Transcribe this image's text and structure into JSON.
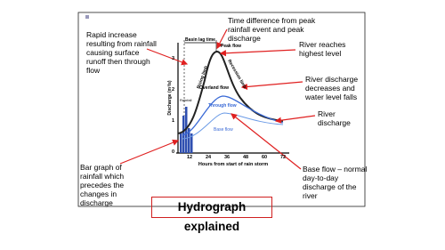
{
  "title": "Hydrograph explained",
  "annotations": {
    "rapid_increase": "Rapid increase resulting from rainfall causing surface runoff then through flow",
    "time_difference": "Time difference from peak rainfall event and peak discharge",
    "highest_level": "River reaches highest level",
    "decreases": "River discharge decreases and water level falls",
    "river_discharge": "River discharge",
    "bar_graph": "Bar graph of rainfall which precedes the changes in discharge",
    "base_flow": "Base flow – normal day-to-day discharge of the river"
  },
  "graph": {
    "y_axis_label": "Discharge (m³/s)",
    "x_axis_label": "Hours from start of rain storm",
    "x_ticks": [
      "12",
      "24",
      "36",
      "48",
      "60",
      "72"
    ],
    "y_ticks": [
      "0",
      "1",
      "2",
      "3"
    ],
    "basin_lag_time": "Basin lag time",
    "peak_flow": "Peak flow",
    "rising_limb": "Rising limb",
    "recession_limb": "Recession limb",
    "overland_flow": "Overland flow",
    "through_flow": "Through flow",
    "base_flow": "Base flow",
    "rainfall": "Rainfall"
  }
}
